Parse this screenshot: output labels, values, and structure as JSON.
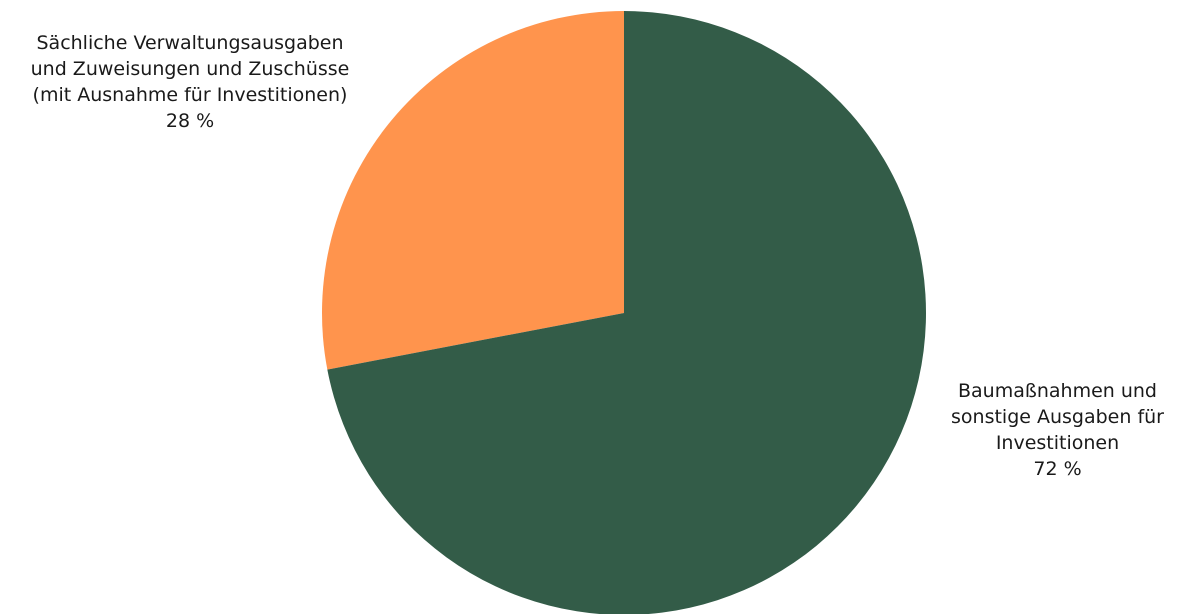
{
  "chart_data": {
    "type": "pie",
    "title": "",
    "slices": [
      {
        "label_lines": [
          "Sächliche Verwaltungsausgaben",
          "und Zuweisungen und Zuschüsse",
          "(mit Ausnahme für Investitionen)"
        ],
        "value": 28,
        "value_label": "28 %",
        "color": "#FF944D"
      },
      {
        "label_lines": [
          "Baumaßnahmen und",
          "sonstige Ausgaben für",
          "Investitionen"
        ],
        "value": 72,
        "value_label": "72 %",
        "color": "#335C48"
      }
    ],
    "start": "12 o'clock",
    "direction": "counterclockwise",
    "legend": "none"
  }
}
